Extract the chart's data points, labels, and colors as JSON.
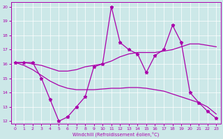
{
  "bg_color": "#cce8e8",
  "line_color": "#aa00aa",
  "xlabel": "Windchill (Refroidissement éolien,°C)",
  "xlim": [
    -0.5,
    23.5
  ],
  "ylim": [
    11.8,
    20.3
  ],
  "xticks": [
    0,
    1,
    2,
    3,
    4,
    5,
    6,
    7,
    8,
    9,
    10,
    11,
    12,
    13,
    14,
    15,
    16,
    17,
    18,
    19,
    20,
    21,
    22,
    23
  ],
  "yticks": [
    12,
    13,
    14,
    15,
    16,
    17,
    18,
    19,
    20
  ],
  "jagged": [
    16.1,
    16.1,
    16.1,
    15.0,
    13.5,
    12.0,
    12.3,
    13.0,
    13.7,
    15.8,
    16.0,
    20.0,
    17.5,
    17.0,
    16.7,
    15.4,
    16.6,
    17.0,
    18.7,
    17.5,
    14.0,
    13.3,
    12.7,
    12.2
  ],
  "smooth_upper": [
    16.1,
    16.1,
    16.0,
    15.9,
    15.7,
    15.5,
    15.5,
    15.6,
    15.8,
    15.9,
    16.0,
    16.2,
    16.5,
    16.7,
    16.8,
    16.8,
    16.8,
    16.9,
    17.0,
    17.2,
    17.4,
    17.4,
    17.3,
    17.2
  ],
  "smooth_lower": [
    16.1,
    15.9,
    15.6,
    15.2,
    14.8,
    14.5,
    14.3,
    14.2,
    14.2,
    14.2,
    14.25,
    14.3,
    14.3,
    14.35,
    14.35,
    14.3,
    14.2,
    14.1,
    13.9,
    13.7,
    13.5,
    13.3,
    13.0,
    12.5
  ]
}
